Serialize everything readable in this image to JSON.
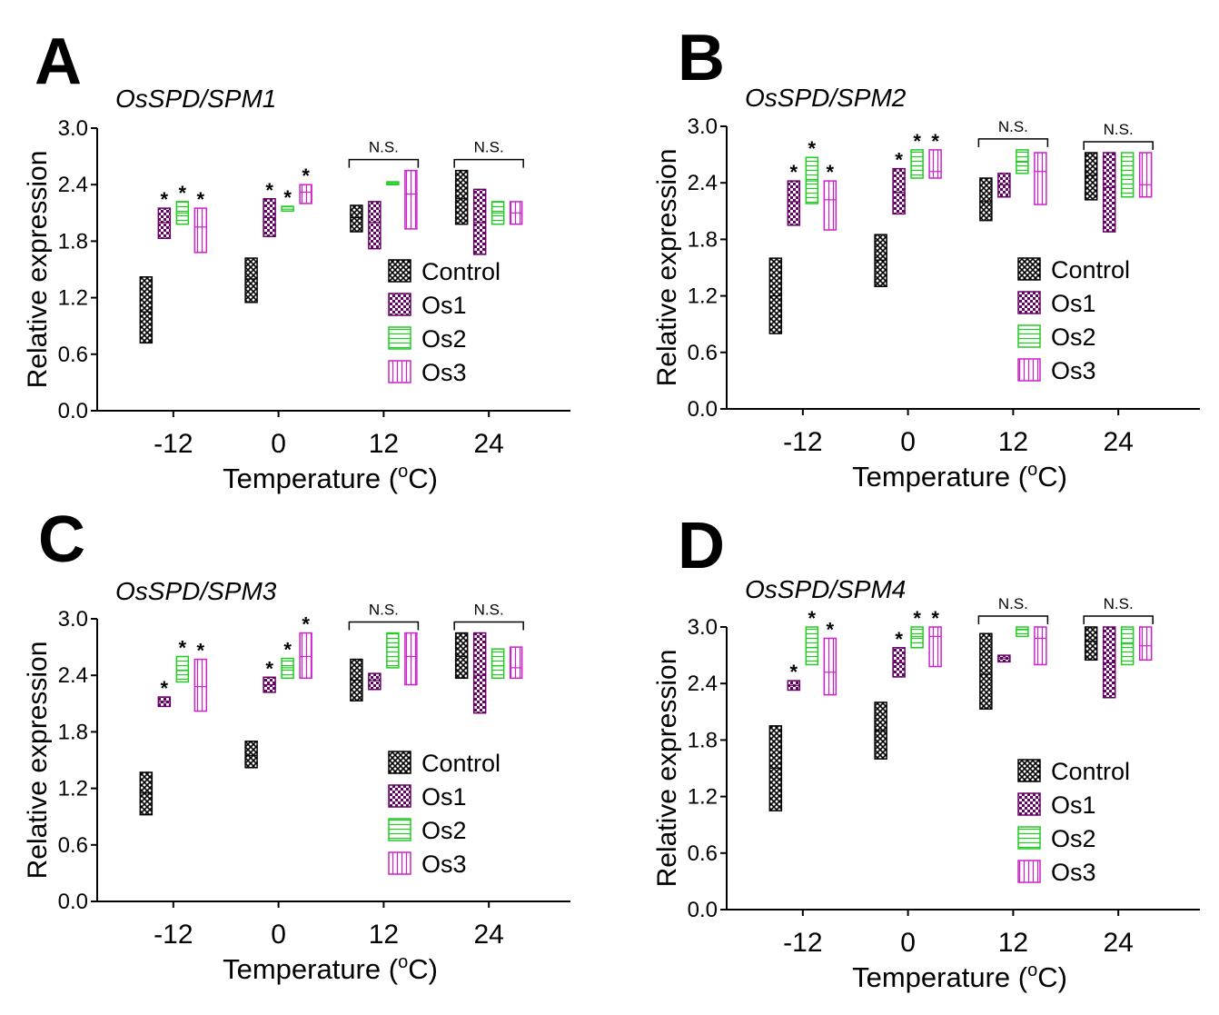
{
  "colors": {
    "control": "#000000",
    "os1": "#660066",
    "os2": "#22cc22",
    "os3": "#cc22cc"
  },
  "legend": [
    "Control",
    "Os1",
    "Os2",
    "Os3"
  ],
  "chart_data": [
    {
      "type": "box",
      "panel": "A",
      "title": "OsSPD/SPM1",
      "xlabel": "Temperature (",
      "xlabel_sup": "o",
      "xlabel_end": "C)",
      "ylabel": "Relative expression",
      "ylim": [
        0,
        3.0
      ],
      "yticks": [
        "0.0",
        "0.6",
        "1.2",
        "1.8",
        "2.4",
        "3.0"
      ],
      "categories": [
        "-12",
        "0",
        "12",
        "24"
      ],
      "series": [
        {
          "name": "Control",
          "boxes": [
            [
              0.72,
              1.42,
              1.05
            ],
            [
              1.15,
              1.62,
              1.4
            ],
            [
              1.9,
              2.18,
              2.05
            ],
            [
              1.98,
              2.55,
              2.25
            ]
          ]
        },
        {
          "name": "Os1",
          "boxes": [
            [
              1.83,
              2.15,
              2.0
            ],
            [
              1.85,
              2.25,
              2.05
            ],
            [
              1.72,
              2.22,
              2.0
            ],
            [
              1.66,
              2.35,
              2.0
            ]
          ]
        },
        {
          "name": "Os2",
          "boxes": [
            [
              1.98,
              2.22,
              2.1
            ],
            [
              2.12,
              2.17,
              2.14
            ],
            [
              2.4,
              2.43,
              2.42
            ],
            [
              1.98,
              2.22,
              2.1
            ]
          ]
        },
        {
          "name": "Os3",
          "boxes": [
            [
              1.68,
              2.15,
              1.95
            ],
            [
              2.2,
              2.4,
              2.32
            ],
            [
              1.93,
              2.55,
              2.3
            ],
            [
              1.98,
              2.22,
              2.1
            ]
          ]
        }
      ],
      "stars": [
        "*",
        "*",
        "*",
        "*",
        "*",
        "*"
      ],
      "ns_labels": [
        "N.S.",
        "N.S."
      ]
    },
    {
      "type": "box",
      "panel": "B",
      "title": "OsSPD/SPM2",
      "xlabel": "Temperature (",
      "xlabel_sup": "o",
      "xlabel_end": "C)",
      "ylabel": "Relative expression",
      "ylim": [
        0,
        3.0
      ],
      "yticks": [
        "0.0",
        "0.6",
        "1.2",
        "1.8",
        "2.4",
        "3.0"
      ],
      "categories": [
        "-12",
        "0",
        "12",
        "24"
      ],
      "series": [
        {
          "name": "Control",
          "boxes": [
            [
              0.8,
              1.6,
              1.2
            ],
            [
              1.3,
              1.85,
              1.58
            ],
            [
              2.0,
              2.45,
              2.2
            ],
            [
              2.22,
              2.72,
              2.48
            ]
          ]
        },
        {
          "name": "Os1",
          "boxes": [
            [
              1.95,
              2.42,
              2.2
            ],
            [
              2.07,
              2.55,
              2.3
            ],
            [
              2.25,
              2.5,
              2.38
            ],
            [
              1.88,
              2.72,
              2.35
            ]
          ]
        },
        {
          "name": "Os2",
          "boxes": [
            [
              2.18,
              2.67,
              2.42
            ],
            [
              2.45,
              2.75,
              2.58
            ],
            [
              2.5,
              2.75,
              2.62
            ],
            [
              2.25,
              2.72,
              2.48
            ]
          ]
        },
        {
          "name": "Os3",
          "boxes": [
            [
              1.9,
              2.42,
              2.22
            ],
            [
              2.45,
              2.75,
              2.52
            ],
            [
              2.17,
              2.72,
              2.52
            ],
            [
              2.25,
              2.72,
              2.38
            ]
          ]
        }
      ],
      "stars": [
        "*",
        "*",
        "*",
        "*",
        "*",
        "*"
      ],
      "ns_labels": [
        "N.S.",
        "N.S."
      ]
    },
    {
      "type": "box",
      "panel": "C",
      "title": "OsSPD/SPM3",
      "xlabel": "Temperature (",
      "xlabel_sup": "o",
      "xlabel_end": "C)",
      "ylabel": "Relative expression",
      "ylim": [
        0,
        3.0
      ],
      "yticks": [
        "0.0",
        "0.6",
        "1.2",
        "1.8",
        "2.4",
        "3.0"
      ],
      "categories": [
        "-12",
        "0",
        "12",
        "24"
      ],
      "series": [
        {
          "name": "Control",
          "boxes": [
            [
              0.92,
              1.37,
              1.15
            ],
            [
              1.42,
              1.7,
              1.55
            ],
            [
              2.13,
              2.57,
              2.35
            ],
            [
              2.37,
              2.85,
              2.6
            ]
          ]
        },
        {
          "name": "Os1",
          "boxes": [
            [
              2.07,
              2.17,
              2.12
            ],
            [
              2.22,
              2.38,
              2.3
            ],
            [
              2.25,
              2.42,
              2.35
            ],
            [
              2.0,
              2.85,
              2.4
            ]
          ]
        },
        {
          "name": "Os2",
          "boxes": [
            [
              2.33,
              2.6,
              2.45
            ],
            [
              2.37,
              2.58,
              2.48
            ],
            [
              2.48,
              2.85,
              2.7
            ],
            [
              2.37,
              2.68,
              2.5
            ]
          ]
        },
        {
          "name": "Os3",
          "boxes": [
            [
              2.02,
              2.57,
              2.28
            ],
            [
              2.37,
              2.85,
              2.6
            ],
            [
              2.3,
              2.85,
              2.6
            ],
            [
              2.37,
              2.7,
              2.48
            ]
          ]
        }
      ],
      "stars": [
        "*",
        "*",
        "*",
        "*",
        "*",
        "*"
      ],
      "ns_labels": [
        "N.S.",
        "N.S."
      ]
    },
    {
      "type": "box",
      "panel": "D",
      "title": "OsSPD/SPM4",
      "xlabel": "Temperature (",
      "xlabel_sup": "o",
      "xlabel_end": "C)",
      "ylabel": "Relative expression",
      "ylim": [
        0,
        3.0
      ],
      "yticks": [
        "0.0",
        "0.6",
        "1.2",
        "1.8",
        "2.4",
        "3.0"
      ],
      "categories": [
        "-12",
        "0",
        "12",
        "24"
      ],
      "series": [
        {
          "name": "Control",
          "boxes": [
            [
              1.05,
              1.95,
              1.5
            ],
            [
              1.6,
              2.2,
              1.9
            ],
            [
              2.13,
              2.93,
              2.5
            ],
            [
              2.65,
              3.0,
              2.85
            ]
          ]
        },
        {
          "name": "Os1",
          "boxes": [
            [
              2.33,
              2.43,
              2.38
            ],
            [
              2.47,
              2.78,
              2.62
            ],
            [
              2.63,
              2.7,
              2.67
            ],
            [
              2.25,
              3.0,
              2.62
            ]
          ]
        },
        {
          "name": "Os2",
          "boxes": [
            [
              2.6,
              3.0,
              2.78
            ],
            [
              2.78,
              3.0,
              2.9
            ],
            [
              2.9,
              3.0,
              2.97
            ],
            [
              2.6,
              3.0,
              2.82
            ]
          ]
        },
        {
          "name": "Os3",
          "boxes": [
            [
              2.28,
              2.88,
              2.52
            ],
            [
              2.58,
              3.0,
              2.9
            ],
            [
              2.6,
              3.0,
              2.88
            ],
            [
              2.65,
              3.0,
              2.8
            ]
          ]
        }
      ],
      "stars": [
        "*",
        "*",
        "*",
        "*",
        "*",
        "*"
      ],
      "ns_labels": [
        "N.S.",
        "N.S."
      ]
    }
  ]
}
